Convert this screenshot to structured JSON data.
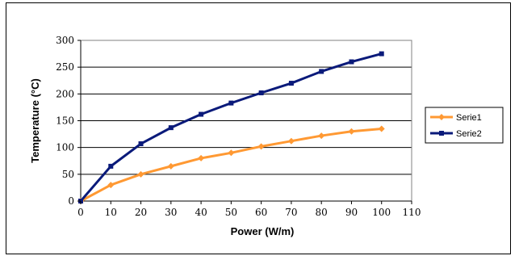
{
  "chart_data": {
    "type": "line",
    "title": "",
    "xlabel": "Power (W/m)",
    "ylabel": "Temperature (°C)",
    "xlim": [
      0,
      110
    ],
    "ylim": [
      0,
      300
    ],
    "x_ticks": [
      0,
      10,
      20,
      30,
      40,
      50,
      60,
      70,
      80,
      90,
      100,
      110
    ],
    "y_ticks": [
      0,
      50,
      100,
      150,
      200,
      250,
      300
    ],
    "grid": "horizontal",
    "legend_position": "right",
    "x": [
      0,
      10,
      20,
      30,
      40,
      50,
      60,
      70,
      80,
      90,
      100
    ],
    "series": [
      {
        "name": "Serie1",
        "color": "#ff9933",
        "marker": "diamond",
        "values": [
          0,
          30,
          50,
          65,
          80,
          90,
          102,
          112,
          122,
          130,
          135
        ]
      },
      {
        "name": "Serie2",
        "color": "#0a1a7a",
        "marker": "square",
        "values": [
          0,
          65,
          107,
          137,
          162,
          183,
          202,
          220,
          242,
          260,
          275
        ]
      }
    ]
  }
}
